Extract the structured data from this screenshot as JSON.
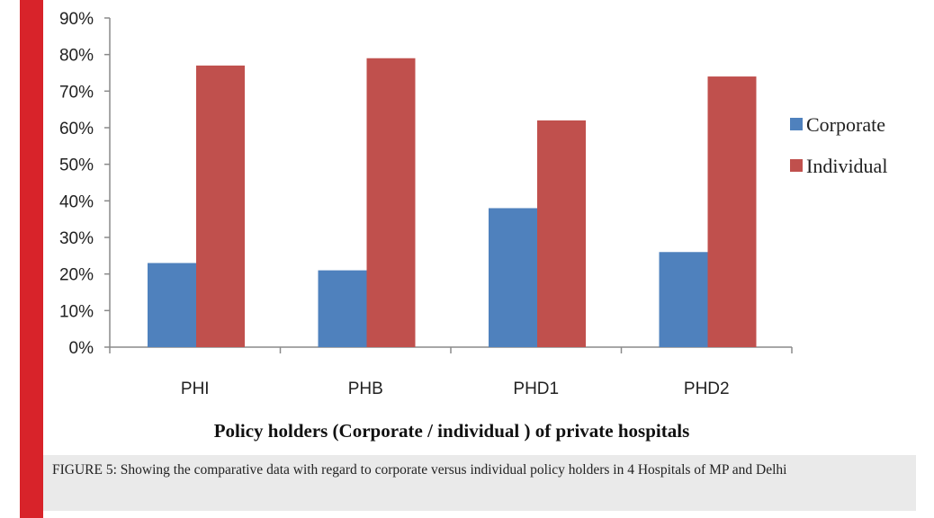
{
  "chart_data": {
    "type": "bar",
    "categories": [
      "PHI",
      "PHB",
      "PHD1",
      "PHD2"
    ],
    "series": [
      {
        "name": "Corporate",
        "values": [
          23,
          21,
          38,
          26
        ],
        "color": "#4f81bd"
      },
      {
        "name": "Individual",
        "values": [
          77,
          79,
          62,
          74
        ],
        "color": "#c0504d"
      }
    ],
    "ylim": [
      0,
      90
    ],
    "yticks": [
      "0%",
      "10%",
      "20%",
      "30%",
      "40%",
      "50%",
      "60%",
      "70%",
      "80%",
      "90%"
    ],
    "xlabel": "Policy holders (Corporate / individual ) of private hospitals",
    "legend_position": "right",
    "grid": false
  },
  "caption": "FIGURE 5: Showing the comparative data with regard to corporate versus individual policy holders in 4 Hospitals of MP and Delhi",
  "colors": {
    "accent_bar": "#d8232a",
    "caption_bg": "#eaeaea"
  }
}
